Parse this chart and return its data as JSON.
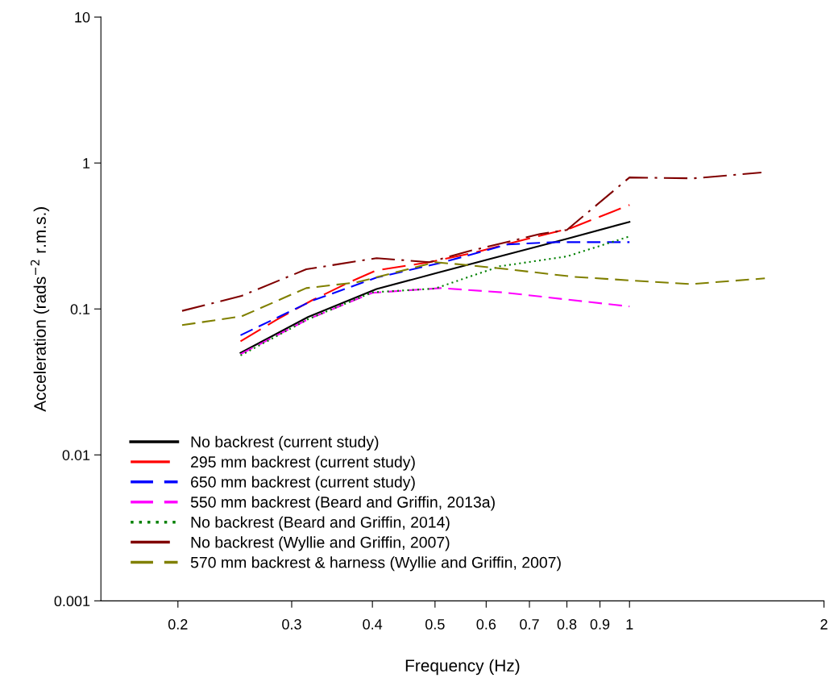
{
  "chart_data": {
    "type": "line",
    "xlabel": "Frequency (Hz)",
    "ylabel": "Acceleration (rads$^{−2}$ r.m.s.)",
    "log": "xy",
    "xlim": [
      0.152,
      2
    ],
    "ylim": [
      0.001,
      10
    ],
    "xticks": [
      0.2,
      0.3,
      0.4,
      0.5,
      0.6,
      0.7,
      0.8,
      0.9,
      1,
      2
    ],
    "yticks": [
      0.001,
      0.01,
      0.1,
      1,
      10
    ],
    "grid": false,
    "legend": "bottom left",
    "marker": "none",
    "series": [
      {
        "name": "No backrest (current study)",
        "color": "#000000",
        "line_style": "solid",
        "x": [
          0.25,
          0.318,
          0.406,
          0.505,
          0.63,
          0.8,
          1.0
        ],
        "values": [
          0.05,
          0.088,
          0.137,
          0.177,
          0.229,
          0.302,
          0.395
        ]
      },
      {
        "name": "295 mm backrest (current study)",
        "color": "#ff0000",
        "line_style": "longdash",
        "x": [
          0.25,
          0.284,
          0.323,
          0.368,
          0.406,
          0.49,
          0.577,
          0.68,
          0.81,
          1.0
        ],
        "values": [
          0.06,
          0.084,
          0.115,
          0.152,
          0.184,
          0.209,
          0.244,
          0.295,
          0.357,
          0.516
        ]
      },
      {
        "name": "650 mm backrest (current study)",
        "color": "#0000ff",
        "line_style": "dashed",
        "x": [
          0.25,
          0.323,
          0.406,
          0.515,
          0.648,
          0.77,
          1.0
        ],
        "values": [
          0.066,
          0.114,
          0.164,
          0.209,
          0.277,
          0.287,
          0.287
        ]
      },
      {
        "name": "550 mm backrest (Beard and Griffin, 2013a)",
        "color": "#ff00ff",
        "line_style": "dashed",
        "x": [
          0.25,
          0.318,
          0.4,
          0.51,
          0.635,
          1.0
        ],
        "values": [
          0.049,
          0.085,
          0.129,
          0.139,
          0.13,
          0.104
        ]
      },
      {
        "name": "No backrest (Beard and Griffin, 2014)",
        "color": "#008000",
        "line_style": "dotted",
        "x": [
          0.25,
          0.318,
          0.4,
          0.5,
          0.63,
          0.8,
          1.0
        ],
        "values": [
          0.048,
          0.085,
          0.13,
          0.138,
          0.196,
          0.229,
          0.314
        ]
      },
      {
        "name": "No backrest (Wyllie and Griffin, 2007)",
        "color": "#800000",
        "line_style": "dashdot",
        "x": [
          0.203,
          0.251,
          0.316,
          0.406,
          0.49,
          0.56,
          0.727,
          0.8,
          1.0,
          1.255,
          1.6
        ],
        "values": [
          0.097,
          0.123,
          0.187,
          0.223,
          0.209,
          0.247,
          0.326,
          0.348,
          0.796,
          0.785,
          0.86
        ]
      },
      {
        "name": "570 mm backrest & harness (Wyllie and Griffin, 2007)",
        "color": "#808000",
        "line_style": "dashed",
        "x": [
          0.203,
          0.251,
          0.316,
          0.378,
          0.5,
          0.56,
          0.635,
          0.82,
          1.0,
          1.245,
          1.62
        ],
        "values": [
          0.0775,
          0.089,
          0.139,
          0.152,
          0.209,
          0.2,
          0.189,
          0.166,
          0.157,
          0.148,
          0.162
        ]
      }
    ]
  }
}
